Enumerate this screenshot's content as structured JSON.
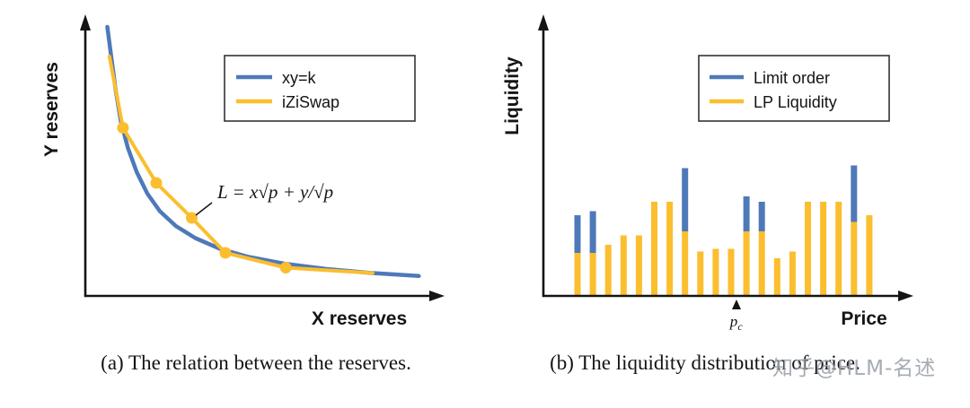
{
  "watermark": "知乎@HLM-名述",
  "figure": {
    "caption_a": "(a) The relation between the reserves.",
    "caption_b": "(b) The liquidity distribution of price."
  },
  "colors": {
    "blue": "#4E79B9",
    "yellow": "#FBBE2E",
    "axis": "#141414"
  },
  "chart_data": [
    {
      "id": "reserves-curves",
      "type": "line",
      "xlabel": "X reserves",
      "ylabel": "Y reserves",
      "xlim": [
        0,
        10
      ],
      "ylim": [
        0,
        10
      ],
      "grid": false,
      "legend_position": "top-right",
      "legend": [
        {
          "label": "xy=k",
          "color": "#4E79B9"
        },
        {
          "label": "iZiSwap",
          "color": "#FBBE2E"
        }
      ],
      "annotation": {
        "text": "L = x√p + y/√p",
        "attached_point": [
          3.0,
          2.9
        ]
      },
      "series": [
        {
          "name": "xy=k",
          "color": "#4E79B9",
          "points": [
            [
              0.62,
              10.0
            ],
            [
              0.72,
              9.0
            ],
            [
              0.85,
              7.7
            ],
            [
              1.0,
              6.5
            ],
            [
              1.2,
              5.5
            ],
            [
              1.45,
              4.6
            ],
            [
              1.75,
              3.8
            ],
            [
              2.1,
              3.15
            ],
            [
              2.55,
              2.6
            ],
            [
              3.1,
              2.15
            ],
            [
              3.8,
              1.75
            ],
            [
              4.6,
              1.45
            ],
            [
              5.6,
              1.2
            ],
            [
              6.8,
              1.0
            ],
            [
              8.0,
              0.86
            ],
            [
              9.4,
              0.74
            ]
          ]
        },
        {
          "name": "iZiSwap",
          "color": "#FBBE2E",
          "points": [
            [
              0.68,
              8.9
            ],
            [
              1.06,
              6.25
            ],
            [
              2.0,
              4.2
            ],
            [
              3.0,
              2.9
            ],
            [
              3.95,
              1.6
            ],
            [
              5.65,
              1.05
            ],
            [
              8.1,
              0.85
            ]
          ],
          "marker_points": [
            [
              1.06,
              6.25
            ],
            [
              2.0,
              4.2
            ],
            [
              3.0,
              2.9
            ],
            [
              3.95,
              1.6
            ],
            [
              5.65,
              1.05
            ]
          ]
        }
      ]
    },
    {
      "id": "liquidity-distribution",
      "type": "bar",
      "stacked": true,
      "xlabel": "Price",
      "ylabel": "Liquidity",
      "ylim": [
        0,
        1
      ],
      "grid": false,
      "legend_position": "top-right",
      "legend": [
        {
          "label": "Limit order",
          "color": "#4E79B9"
        },
        {
          "label": "LP Liquidity",
          "color": "#FBBE2E"
        }
      ],
      "price_marker": {
        "base": "p",
        "sub": "c",
        "bar_index": 10.35
      },
      "series": [
        {
          "name": "LP Liquidity",
          "color": "#FBBE2E",
          "values": [
            0.32,
            0.32,
            0.38,
            0.45,
            0.45,
            0.7,
            0.7,
            0.48,
            0.33,
            0.35,
            0.35,
            0.48,
            0.48,
            0.28,
            0.33,
            0.7,
            0.7,
            0.7,
            0.55,
            0.6
          ]
        },
        {
          "name": "Limit order",
          "color": "#4E79B9",
          "values": [
            0.28,
            0.31,
            0,
            0,
            0,
            0,
            0,
            0.47,
            0,
            0,
            0,
            0.26,
            0.22,
            0,
            0,
            0,
            0,
            0,
            0.42,
            0
          ]
        }
      ]
    }
  ]
}
